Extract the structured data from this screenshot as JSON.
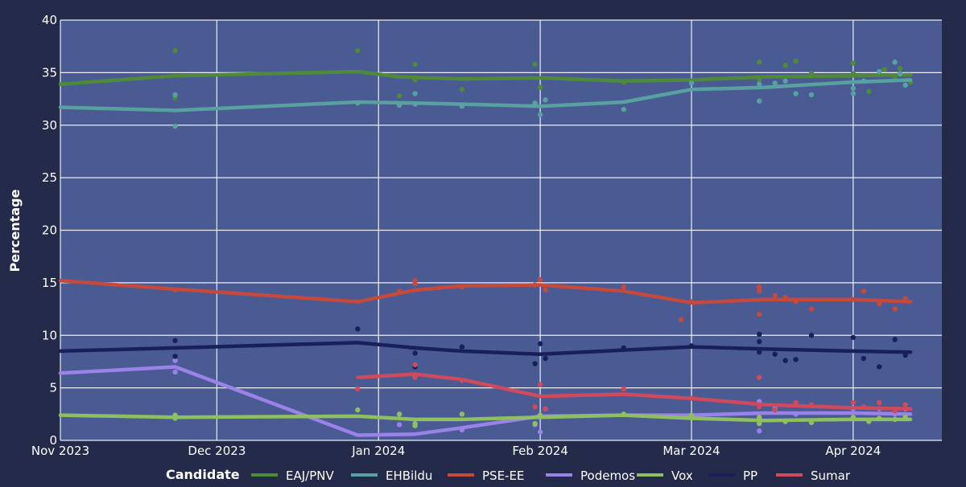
{
  "chart_data": {
    "type": "line",
    "title": "",
    "xlabel": "",
    "ylabel": "Percentage",
    "ylim": [
      0,
      40
    ],
    "yticks": [
      0,
      5,
      10,
      15,
      20,
      25,
      30,
      35,
      40
    ],
    "xlim": [
      "2023-11-01",
      "2024-04-18"
    ],
    "xticks": [
      {
        "date": "2023-11-01",
        "label": "Nov 2023"
      },
      {
        "date": "2023-12-01",
        "label": "Dec 2023"
      },
      {
        "date": "2024-01-01",
        "label": "Jan 2024"
      },
      {
        "date": "2024-02-01",
        "label": "Feb 2024"
      },
      {
        "date": "2024-03-01",
        "label": "Mar 2024"
      },
      {
        "date": "2024-04-01",
        "label": "Apr 2024"
      }
    ],
    "grid": true,
    "legend_title": "Candidate",
    "legend_position": "bottom",
    "plot_background": "#4a5a93",
    "page_background": "#232a4a",
    "series": [
      {
        "name": "EAJ/PNV",
        "color": "#4f8a3c",
        "trend": [
          [
            "2023-11-01",
            33.9
          ],
          [
            "2023-11-23",
            34.7
          ],
          [
            "2023-12-28",
            35.1
          ],
          [
            "2024-01-05",
            34.6
          ],
          [
            "2024-01-17",
            34.4
          ],
          [
            "2024-02-01",
            34.5
          ],
          [
            "2024-02-17",
            34.2
          ],
          [
            "2024-03-01",
            34.3
          ],
          [
            "2024-03-15",
            34.6
          ],
          [
            "2024-04-01",
            34.7
          ],
          [
            "2024-04-12",
            34.8
          ]
        ],
        "polls": [
          [
            "2023-11-23",
            37.1
          ],
          [
            "2023-11-23",
            32.6
          ],
          [
            "2023-12-28",
            37.1
          ],
          [
            "2024-01-05",
            32.8
          ],
          [
            "2024-01-08",
            35.8
          ],
          [
            "2024-01-08",
            34.3
          ],
          [
            "2024-01-17",
            33.4
          ],
          [
            "2024-01-31",
            35.8
          ],
          [
            "2024-02-01",
            33.6
          ],
          [
            "2024-02-17",
            34.1
          ],
          [
            "2024-03-01",
            34.2
          ],
          [
            "2024-03-14",
            36.0
          ],
          [
            "2024-03-14",
            34.3
          ],
          [
            "2024-03-19",
            35.7
          ],
          [
            "2024-03-21",
            36.1
          ],
          [
            "2024-03-24",
            34.9
          ],
          [
            "2024-04-01",
            35.9
          ],
          [
            "2024-04-01",
            34.9
          ],
          [
            "2024-04-04",
            33.2
          ],
          [
            "2024-04-07",
            35.3
          ],
          [
            "2024-04-09",
            34.6
          ],
          [
            "2024-04-10",
            35.4
          ],
          [
            "2024-04-12",
            34.1
          ]
        ]
      },
      {
        "name": "EHBildu",
        "color": "#58a1a0",
        "trend": [
          [
            "2023-11-01",
            31.7
          ],
          [
            "2023-11-23",
            31.4
          ],
          [
            "2023-12-28",
            32.2
          ],
          [
            "2024-01-08",
            32.1
          ],
          [
            "2024-01-17",
            32.0
          ],
          [
            "2024-02-01",
            31.8
          ],
          [
            "2024-02-17",
            32.2
          ],
          [
            "2024-03-01",
            33.4
          ],
          [
            "2024-03-15",
            33.6
          ],
          [
            "2024-04-01",
            34.1
          ],
          [
            "2024-04-12",
            34.3
          ]
        ],
        "polls": [
          [
            "2023-11-23",
            32.9
          ],
          [
            "2023-11-23",
            29.9
          ],
          [
            "2023-12-28",
            32.1
          ],
          [
            "2024-01-05",
            31.9
          ],
          [
            "2024-01-08",
            33.0
          ],
          [
            "2024-01-08",
            32.0
          ],
          [
            "2024-01-17",
            31.8
          ],
          [
            "2024-01-31",
            32.1
          ],
          [
            "2024-02-01",
            31.0
          ],
          [
            "2024-02-02",
            32.4
          ],
          [
            "2024-02-17",
            31.5
          ],
          [
            "2024-03-01",
            34.0
          ],
          [
            "2024-03-14",
            32.3
          ],
          [
            "2024-03-14",
            33.9
          ],
          [
            "2024-03-17",
            34.0
          ],
          [
            "2024-03-19",
            34.2
          ],
          [
            "2024-03-21",
            33.0
          ],
          [
            "2024-03-24",
            32.9
          ],
          [
            "2024-04-01",
            33.0
          ],
          [
            "2024-04-01",
            33.5
          ],
          [
            "2024-04-03",
            34.2
          ],
          [
            "2024-04-06",
            35.1
          ],
          [
            "2024-04-09",
            36.0
          ],
          [
            "2024-04-10",
            34.9
          ],
          [
            "2024-04-11",
            33.8
          ]
        ]
      },
      {
        "name": "PSE-EE",
        "color": "#c44a3e",
        "trend": [
          [
            "2023-11-01",
            15.2
          ],
          [
            "2023-11-23",
            14.4
          ],
          [
            "2023-12-28",
            13.2
          ],
          [
            "2024-01-08",
            14.3
          ],
          [
            "2024-01-17",
            14.7
          ],
          [
            "2024-02-01",
            14.8
          ],
          [
            "2024-02-17",
            14.2
          ],
          [
            "2024-03-01",
            13.1
          ],
          [
            "2024-03-15",
            13.4
          ],
          [
            "2024-04-01",
            13.4
          ],
          [
            "2024-04-12",
            13.2
          ]
        ],
        "polls": [
          [
            "2023-11-23",
            14.3
          ],
          [
            "2023-12-28",
            13.2
          ],
          [
            "2024-01-05",
            14.2
          ],
          [
            "2024-01-08",
            15.2
          ],
          [
            "2024-01-08",
            14.9
          ],
          [
            "2024-01-17",
            14.6
          ],
          [
            "2024-01-31",
            14.8
          ],
          [
            "2024-02-01",
            15.3
          ],
          [
            "2024-02-02",
            14.3
          ],
          [
            "2024-02-17",
            14.6
          ],
          [
            "2024-02-28",
            11.5
          ],
          [
            "2024-03-01",
            13.2
          ],
          [
            "2024-03-14",
            14.6
          ],
          [
            "2024-03-14",
            14.2
          ],
          [
            "2024-03-14",
            12.0
          ],
          [
            "2024-03-17",
            13.8
          ],
          [
            "2024-03-19",
            13.6
          ],
          [
            "2024-03-21",
            13.2
          ],
          [
            "2024-03-24",
            12.5
          ],
          [
            "2024-04-01",
            13.4
          ],
          [
            "2024-04-03",
            14.2
          ],
          [
            "2024-04-06",
            13.0
          ],
          [
            "2024-04-09",
            12.5
          ],
          [
            "2024-04-11",
            13.5
          ]
        ]
      },
      {
        "name": "Podemos",
        "color": "#9a82e8",
        "trend": [
          [
            "2023-11-01",
            6.4
          ],
          [
            "2023-11-23",
            7.0
          ],
          [
            "2023-12-28",
            0.5
          ],
          [
            "2024-01-08",
            0.6
          ],
          [
            "2024-01-17",
            1.2
          ],
          [
            "2024-02-01",
            2.3
          ],
          [
            "2024-02-17",
            2.4
          ],
          [
            "2024-03-01",
            2.4
          ],
          [
            "2024-03-15",
            2.6
          ],
          [
            "2024-04-01",
            2.6
          ],
          [
            "2024-04-12",
            2.5
          ]
        ],
        "polls": [
          [
            "2023-11-23",
            7.6
          ],
          [
            "2023-11-23",
            6.5
          ],
          [
            "2024-01-05",
            1.5
          ],
          [
            "2024-01-17",
            1.0
          ],
          [
            "2024-01-31",
            1.5
          ],
          [
            "2024-02-01",
            0.8
          ],
          [
            "2024-02-02",
            3.0
          ],
          [
            "2024-03-14",
            3.7
          ],
          [
            "2024-03-14",
            2.1
          ],
          [
            "2024-03-14",
            0.9
          ],
          [
            "2024-03-17",
            3.0
          ],
          [
            "2024-03-21",
            2.5
          ],
          [
            "2024-04-01",
            3.0
          ],
          [
            "2024-04-06",
            3.0
          ],
          [
            "2024-04-09",
            2.5
          ],
          [
            "2024-04-11",
            3.0
          ]
        ]
      },
      {
        "name": "Vox",
        "color": "#8fc060",
        "trend": [
          [
            "2023-11-01",
            2.4
          ],
          [
            "2023-11-23",
            2.2
          ],
          [
            "2023-12-28",
            2.3
          ],
          [
            "2024-01-08",
            2.0
          ],
          [
            "2024-01-17",
            2.0
          ],
          [
            "2024-02-01",
            2.2
          ],
          [
            "2024-02-17",
            2.4
          ],
          [
            "2024-03-01",
            2.1
          ],
          [
            "2024-03-15",
            1.9
          ],
          [
            "2024-04-01",
            2.0
          ],
          [
            "2024-04-12",
            2.0
          ]
        ],
        "polls": [
          [
            "2023-11-23",
            2.4
          ],
          [
            "2023-11-23",
            2.1
          ],
          [
            "2023-12-28",
            2.9
          ],
          [
            "2024-01-05",
            2.5
          ],
          [
            "2024-01-08",
            1.6
          ],
          [
            "2024-01-08",
            1.4
          ],
          [
            "2024-01-17",
            2.5
          ],
          [
            "2024-01-31",
            1.6
          ],
          [
            "2024-02-01",
            2.4
          ],
          [
            "2024-02-17",
            2.5
          ],
          [
            "2024-03-01",
            2.4
          ],
          [
            "2024-03-14",
            1.6
          ],
          [
            "2024-03-14",
            2.2
          ],
          [
            "2024-03-19",
            1.8
          ],
          [
            "2024-03-24",
            1.7
          ],
          [
            "2024-04-01",
            2.2
          ],
          [
            "2024-04-04",
            1.8
          ],
          [
            "2024-04-06",
            2.1
          ],
          [
            "2024-04-09",
            2.0
          ],
          [
            "2024-04-11",
            2.2
          ]
        ]
      },
      {
        "name": "PP",
        "color": "#17205a",
        "trend": [
          [
            "2023-11-01",
            8.5
          ],
          [
            "2023-11-23",
            8.8
          ],
          [
            "2023-12-28",
            9.3
          ],
          [
            "2024-01-08",
            8.8
          ],
          [
            "2024-01-17",
            8.5
          ],
          [
            "2024-02-01",
            8.2
          ],
          [
            "2024-02-17",
            8.6
          ],
          [
            "2024-03-01",
            8.9
          ],
          [
            "2024-03-15",
            8.7
          ],
          [
            "2024-04-01",
            8.5
          ],
          [
            "2024-04-12",
            8.4
          ]
        ],
        "polls": [
          [
            "2023-11-23",
            9.5
          ],
          [
            "2023-11-23",
            8.0
          ],
          [
            "2023-12-28",
            10.6
          ],
          [
            "2024-01-08",
            8.3
          ],
          [
            "2024-01-08",
            7.0
          ],
          [
            "2024-01-17",
            8.9
          ],
          [
            "2024-01-31",
            7.3
          ],
          [
            "2024-02-01",
            9.2
          ],
          [
            "2024-02-02",
            7.8
          ],
          [
            "2024-02-17",
            8.8
          ],
          [
            "2024-03-01",
            9.0
          ],
          [
            "2024-03-14",
            10.1
          ],
          [
            "2024-03-14",
            9.4
          ],
          [
            "2024-03-14",
            8.4
          ],
          [
            "2024-03-17",
            8.2
          ],
          [
            "2024-03-19",
            7.6
          ],
          [
            "2024-03-21",
            7.7
          ],
          [
            "2024-03-24",
            10.0
          ],
          [
            "2024-04-01",
            9.8
          ],
          [
            "2024-04-03",
            7.8
          ],
          [
            "2024-04-06",
            7.0
          ],
          [
            "2024-04-09",
            9.6
          ],
          [
            "2024-04-11",
            8.1
          ]
        ]
      },
      {
        "name": "Sumar",
        "color": "#d04a5e",
        "trend": [
          [
            "2023-12-28",
            6.0
          ],
          [
            "2024-01-08",
            6.3
          ],
          [
            "2024-01-17",
            5.8
          ],
          [
            "2024-02-01",
            4.2
          ],
          [
            "2024-02-17",
            4.4
          ],
          [
            "2024-03-01",
            4.0
          ],
          [
            "2024-03-15",
            3.4
          ],
          [
            "2024-04-01",
            3.1
          ],
          [
            "2024-04-12",
            3.0
          ]
        ],
        "polls": [
          [
            "2023-12-28",
            4.9
          ],
          [
            "2024-01-08",
            7.2
          ],
          [
            "2024-01-08",
            6.0
          ],
          [
            "2024-01-17",
            5.7
          ],
          [
            "2024-01-31",
            3.2
          ],
          [
            "2024-02-01",
            5.3
          ],
          [
            "2024-02-02",
            3.0
          ],
          [
            "2024-02-17",
            4.9
          ],
          [
            "2024-03-01",
            4.0
          ],
          [
            "2024-03-14",
            6.0
          ],
          [
            "2024-03-14",
            3.2
          ],
          [
            "2024-03-17",
            2.9
          ],
          [
            "2024-03-21",
            3.6
          ],
          [
            "2024-03-24",
            3.4
          ],
          [
            "2024-04-01",
            3.6
          ],
          [
            "2024-04-03",
            3.2
          ],
          [
            "2024-04-06",
            3.6
          ],
          [
            "2024-04-09",
            2.8
          ],
          [
            "2024-04-11",
            3.4
          ]
        ]
      }
    ]
  }
}
